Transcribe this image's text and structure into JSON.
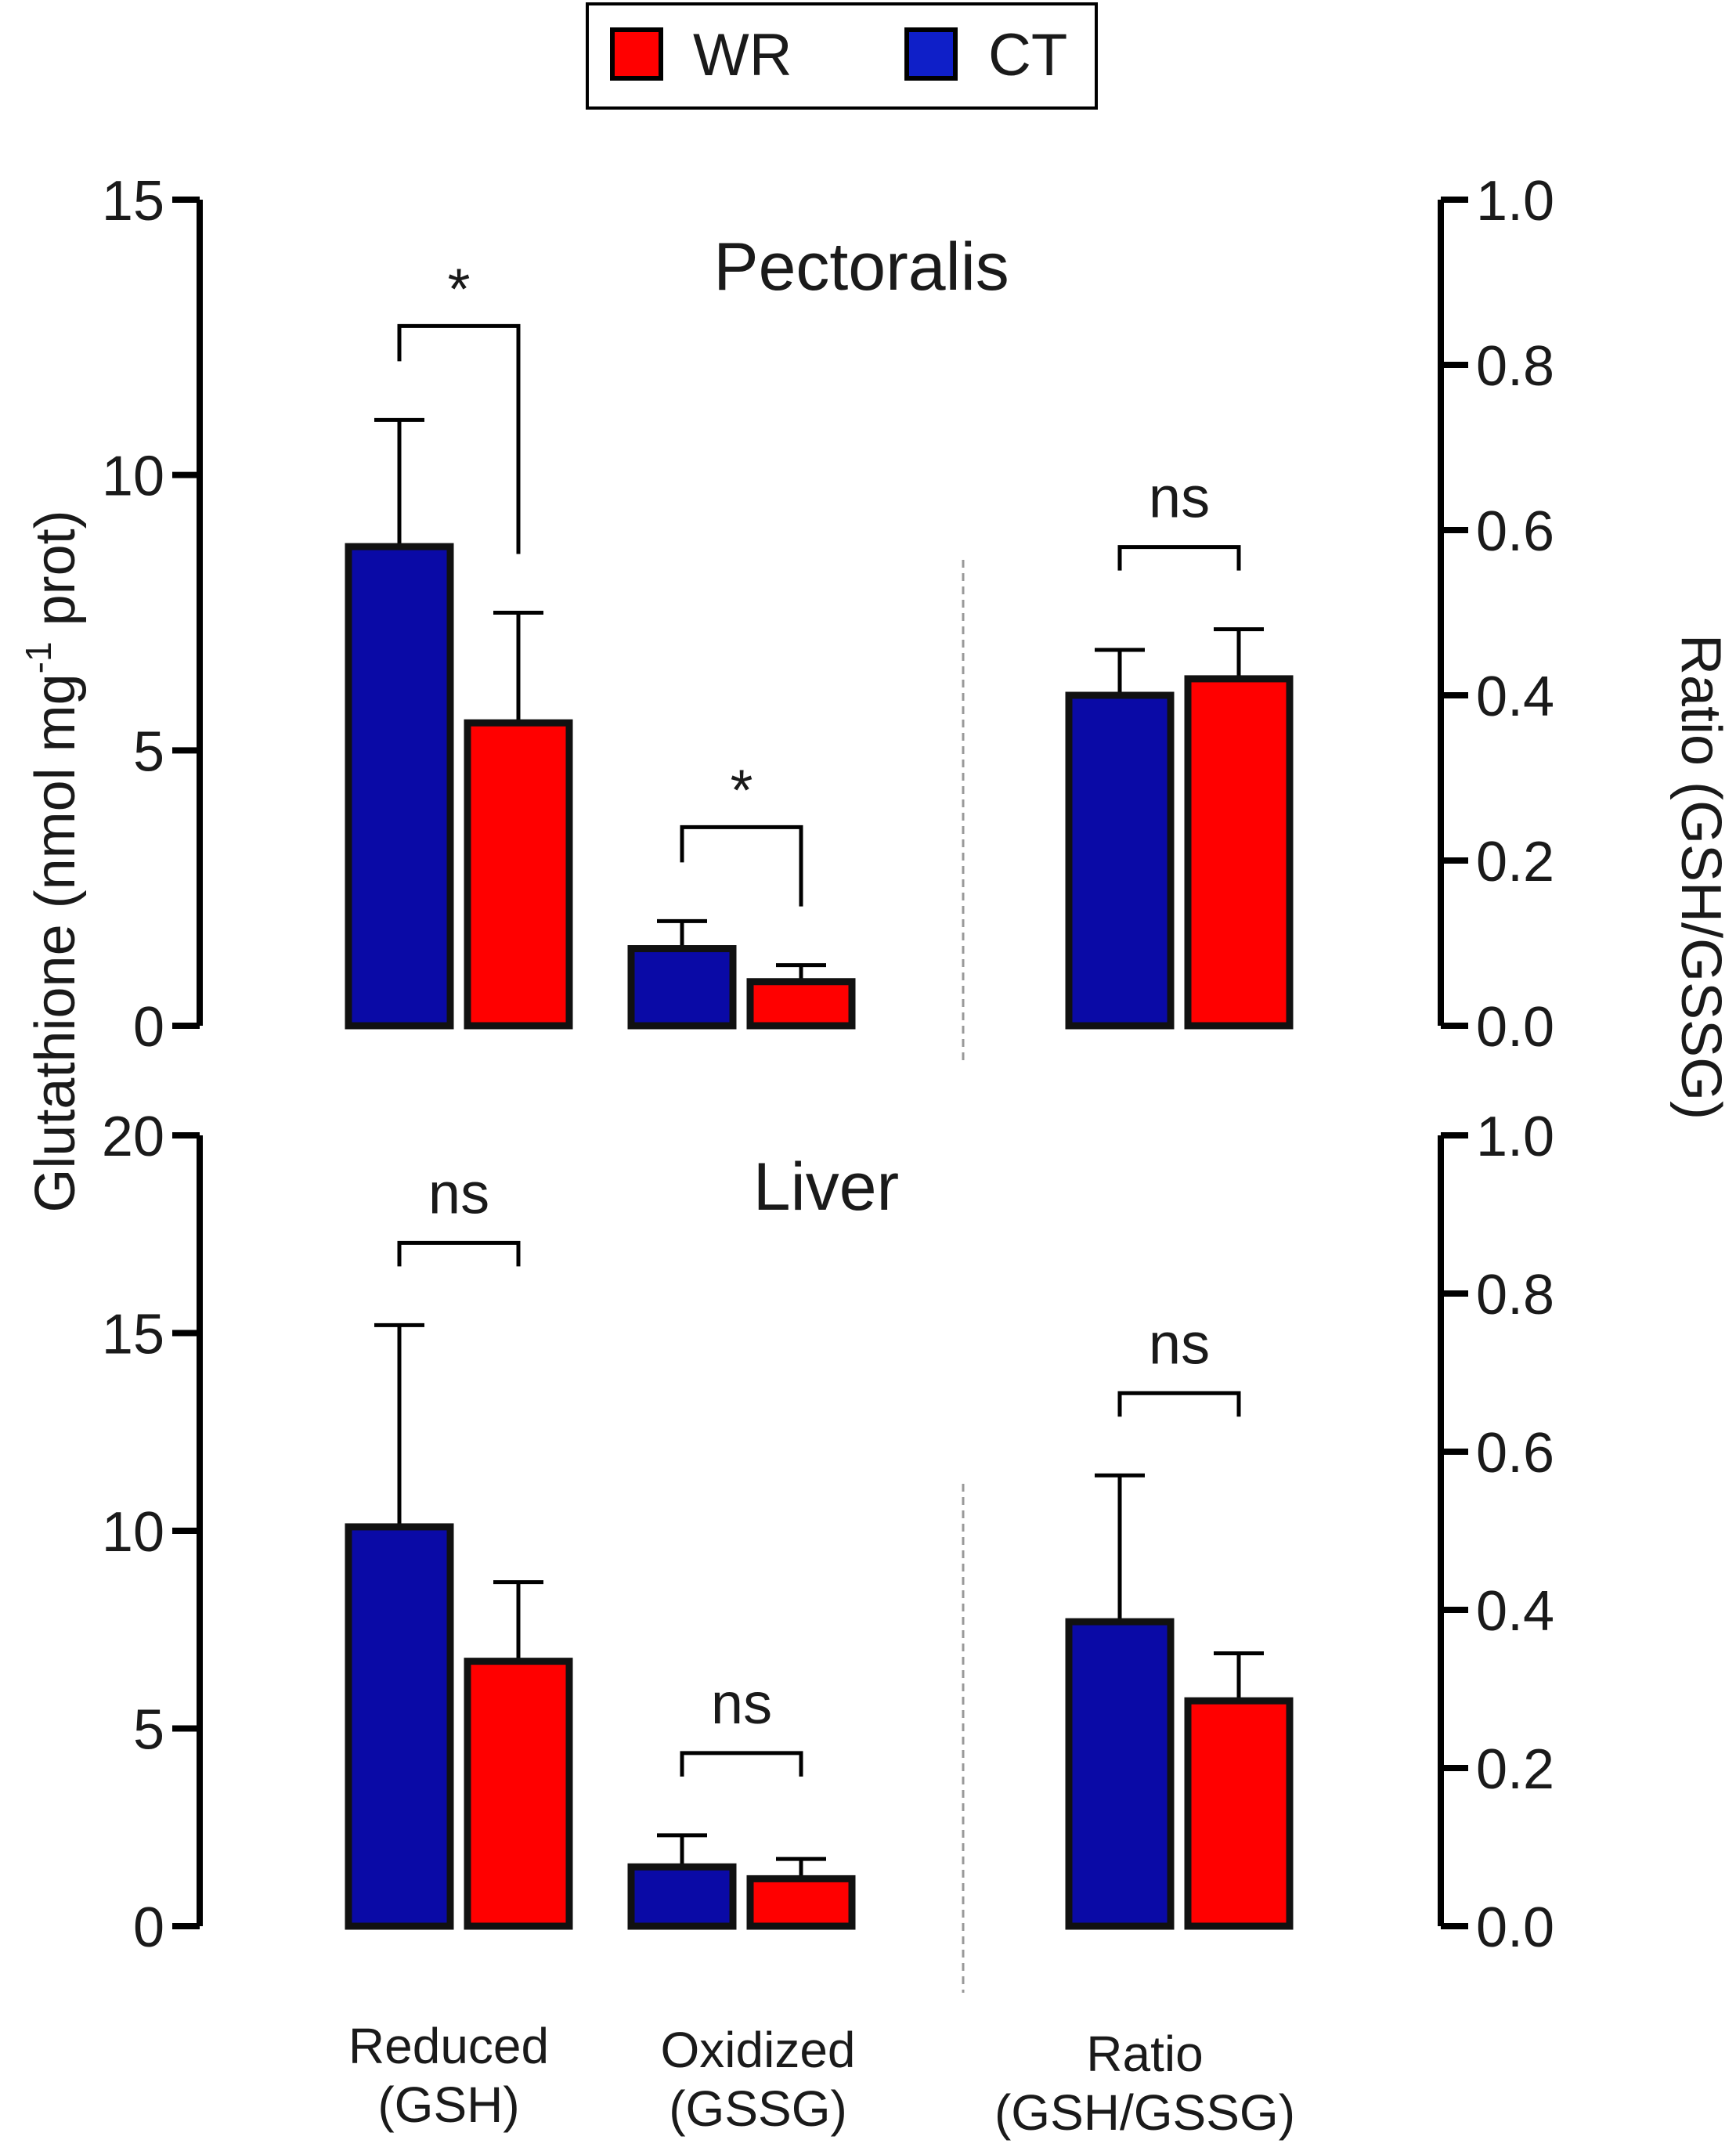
{
  "legend": {
    "items": [
      {
        "label": "WR",
        "color": "#ff0000"
      },
      {
        "label": "CT",
        "color": "#0f1fc8"
      }
    ]
  },
  "colors": {
    "CT": "#0a0aa6",
    "WR": "#ff0000",
    "axis": "#000000",
    "divider": "#999999"
  },
  "axis_titles": {
    "left": "Glutathione (nmol mg",
    "left_sup": "-1",
    "left_tail": " prot)",
    "right": "Ratio (GSH/GSSG)"
  },
  "categories": [
    "Reduced\n(GSH)",
    "Oxidized\n(GSSG)",
    "Ratio\n(GSH/GSSG)"
  ],
  "category_labels": {
    "reduced": [
      "Reduced",
      "(GSH)"
    ],
    "oxidized": [
      "Oxidized",
      "(GSSG)"
    ],
    "ratio": [
      "Ratio",
      "(GSH/GSSG)"
    ]
  },
  "chart_data": [
    {
      "type": "bar",
      "title": "Pectoralis",
      "ylabel": "Glutathione (nmol mg-1 prot)",
      "ylabel_right": "Ratio (GSH/GSSG)",
      "ylim": [
        0,
        15
      ],
      "yticks": [
        0,
        5,
        10,
        15
      ],
      "ylim_right": [
        0,
        1.0
      ],
      "yticks_right": [
        "0.0",
        "0.2",
        "0.4",
        "0.6",
        "0.8",
        "1.0"
      ],
      "groups": [
        {
          "category": "Reduced (GSH)",
          "axis": "left",
          "CT": 8.7,
          "CT_err": 2.3,
          "WR": 5.5,
          "WR_err": 2.0,
          "sig": "*"
        },
        {
          "category": "Oxidized (GSSG)",
          "axis": "left",
          "CT": 1.4,
          "CT_err": 0.5,
          "WR": 0.8,
          "WR_err": 0.3,
          "sig": "*"
        },
        {
          "category": "Ratio (GSH/GSSG)",
          "axis": "right",
          "CT": 0.4,
          "CT_err": 0.055,
          "WR": 0.42,
          "WR_err": 0.06,
          "sig": "ns"
        }
      ]
    },
    {
      "type": "bar",
      "title": "Liver",
      "ylabel": "Glutathione (nmol mg-1 prot)",
      "ylabel_right": "Ratio (GSH/GSSG)",
      "ylim": [
        0,
        20
      ],
      "yticks": [
        0,
        5,
        10,
        15,
        20
      ],
      "ylim_right": [
        0,
        1.0
      ],
      "yticks_right": [
        "0.0",
        "0.2",
        "0.4",
        "0.6",
        "0.8",
        "1.0"
      ],
      "groups": [
        {
          "category": "Reduced (GSH)",
          "axis": "left",
          "CT": 10.1,
          "CT_err": 5.1,
          "WR": 6.7,
          "WR_err": 2.0,
          "sig": "ns"
        },
        {
          "category": "Oxidized (GSSG)",
          "axis": "left",
          "CT": 1.5,
          "CT_err": 0.8,
          "WR": 1.2,
          "WR_err": 0.5,
          "sig": "ns"
        },
        {
          "category": "Ratio (GSH/GSSG)",
          "axis": "right",
          "CT": 0.385,
          "CT_err": 0.185,
          "WR": 0.285,
          "WR_err": 0.06,
          "sig": "ns"
        }
      ]
    }
  ]
}
